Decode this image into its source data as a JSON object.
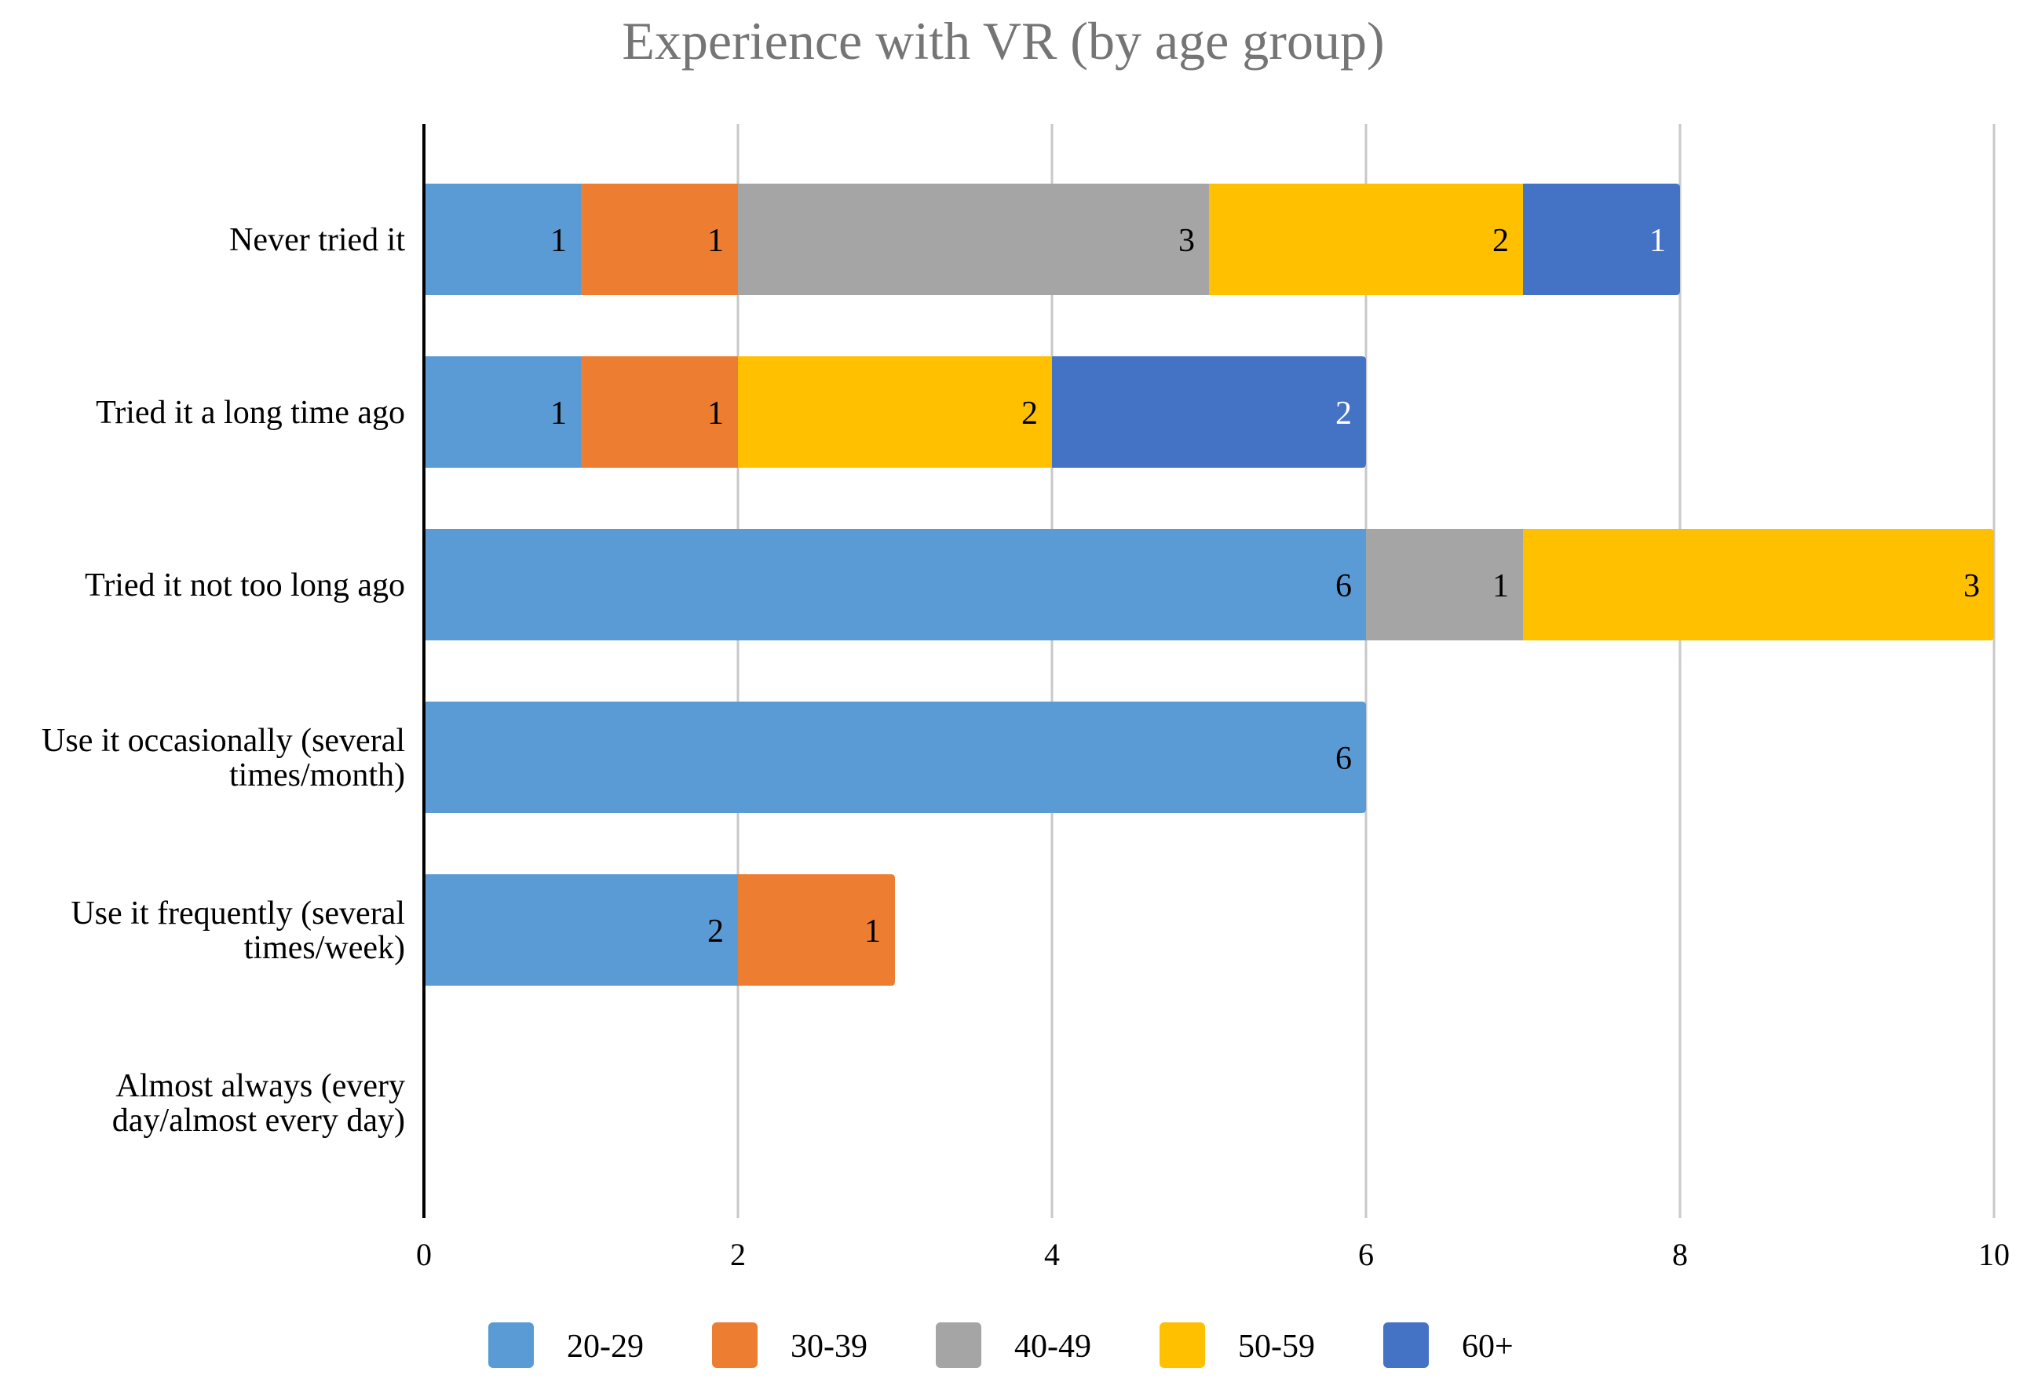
{
  "chart_data": {
    "type": "bar",
    "orientation": "horizontal",
    "stacked": true,
    "title": "Experience with VR (by age group)",
    "xlabel": "",
    "ylabel": "",
    "xlim": [
      0,
      10
    ],
    "x_ticks": [
      0,
      2,
      4,
      6,
      8,
      10
    ],
    "grid": true,
    "legend_position": "bottom",
    "categories": [
      [
        "Never tried it"
      ],
      [
        "Tried it a long time ago"
      ],
      [
        "Tried it not too long ago"
      ],
      [
        "Use it occasionally (several",
        "times/month)"
      ],
      [
        "Use it frequently (several",
        "times/week)"
      ],
      [
        "Almost always (every",
        "day/almost every day)"
      ]
    ],
    "series": [
      {
        "name": "20-29",
        "color": "#5b9bd5",
        "label_color": "#000000",
        "values": [
          1,
          1,
          6,
          6,
          2,
          0
        ]
      },
      {
        "name": "30-39",
        "color": "#ed7d31",
        "label_color": "#000000",
        "values": [
          1,
          1,
          0,
          0,
          1,
          0
        ]
      },
      {
        "name": "40-49",
        "color": "#a5a5a5",
        "label_color": "#000000",
        "values": [
          3,
          0,
          1,
          0,
          0,
          0
        ]
      },
      {
        "name": "50-59",
        "color": "#ffc000",
        "label_color": "#000000",
        "values": [
          2,
          2,
          3,
          0,
          0,
          0
        ]
      },
      {
        "name": "60+",
        "color": "#4472c4",
        "label_color": "#ffffff",
        "values": [
          1,
          2,
          0,
          0,
          0,
          0
        ]
      }
    ]
  }
}
